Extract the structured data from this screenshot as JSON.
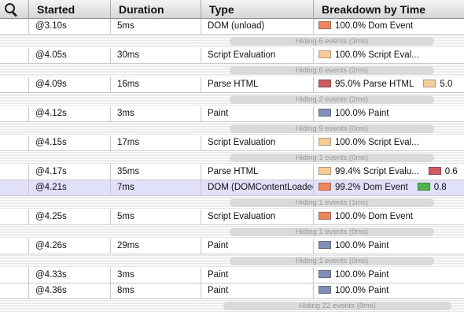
{
  "header": {
    "search_icon": "magnifier-icon",
    "columns": [
      "Started",
      "Duration",
      "Type",
      "Breakdown by Time"
    ]
  },
  "colors": {
    "dom_event": "#f0855a",
    "script_evaluation": "#f8cc96",
    "parse_html": "#cf5a62",
    "paint": "#7f8fb7",
    "other": "#50b44a"
  },
  "items": [
    {
      "kind": "row",
      "started": "@3.10s",
      "duration": "5ms",
      "type": "DOM (unload)",
      "breakdown": [
        {
          "color": "#f0855a",
          "label": "100.0% Dom Event"
        }
      ]
    },
    {
      "kind": "hiding",
      "label": "Hiding 6 events (3ms)"
    },
    {
      "kind": "row",
      "started": "@4.05s",
      "duration": "30ms",
      "type": "Script Evaluation",
      "breakdown": [
        {
          "color": "#f8cc96",
          "label": "100.0% Script Eval..."
        }
      ]
    },
    {
      "kind": "hiding",
      "label": "Hiding 6 events (2ms)"
    },
    {
      "kind": "row",
      "started": "@4.09s",
      "duration": "16ms",
      "type": "Parse HTML",
      "breakdown": [
        {
          "color": "#cf5a62",
          "label": "95.0% Parse HTML"
        },
        {
          "color": "#f8cc96",
          "label": "5.0"
        }
      ]
    },
    {
      "kind": "hiding",
      "label": "Hiding 2 events (2ms)"
    },
    {
      "kind": "row",
      "started": "@4.12s",
      "duration": "3ms",
      "type": "Paint",
      "breakdown": [
        {
          "color": "#7f8fb7",
          "label": "100.0% Paint"
        }
      ]
    },
    {
      "kind": "hiding",
      "label": "Hiding 9 events (0ms)"
    },
    {
      "kind": "row",
      "started": "@4.15s",
      "duration": "17ms",
      "type": "Script Evaluation",
      "breakdown": [
        {
          "color": "#f8cc96",
          "label": "100.0% Script Eval..."
        }
      ]
    },
    {
      "kind": "hiding",
      "label": "Hiding 1 events (0ms)"
    },
    {
      "kind": "row",
      "started": "@4.17s",
      "duration": "35ms",
      "type": "Parse HTML",
      "breakdown": [
        {
          "color": "#f8cc96",
          "label": "99.4% Script Evalu..."
        },
        {
          "color": "#cf5a62",
          "label": "0.6"
        }
      ]
    },
    {
      "kind": "row",
      "started": "@4.21s",
      "duration": "7ms",
      "type": "DOM (DOMContentLoaded)",
      "selected": true,
      "breakdown": [
        {
          "color": "#f0855a",
          "label": "99.2% Dom Event"
        },
        {
          "color": "#50b44a",
          "label": "0.8"
        }
      ]
    },
    {
      "kind": "hiding",
      "label": "Hiding 1 events (1ms)"
    },
    {
      "kind": "row",
      "started": "@4.25s",
      "duration": "5ms",
      "type": "Script Evaluation",
      "breakdown": [
        {
          "color": "#f0855a",
          "label": "100.0% Dom Event"
        }
      ]
    },
    {
      "kind": "hiding",
      "label": "Hiding 1 events (0ms)"
    },
    {
      "kind": "row",
      "started": "@4.26s",
      "duration": "29ms",
      "type": "Paint",
      "breakdown": [
        {
          "color": "#7f8fb7",
          "label": "100.0% Paint"
        }
      ]
    },
    {
      "kind": "hiding",
      "label": "Hiding 1 events (0ms)"
    },
    {
      "kind": "row",
      "started": "@4.33s",
      "duration": "3ms",
      "type": "Paint",
      "breakdown": [
        {
          "color": "#7f8fb7",
          "label": "100.0% Paint"
        }
      ]
    },
    {
      "kind": "row",
      "started": "@4.36s",
      "duration": "8ms",
      "type": "Paint",
      "breakdown": [
        {
          "color": "#7f8fb7",
          "label": "100.0% Paint"
        }
      ]
    },
    {
      "kind": "hiding",
      "label": "Hiding 22 events (8ms)",
      "wide": true
    }
  ]
}
